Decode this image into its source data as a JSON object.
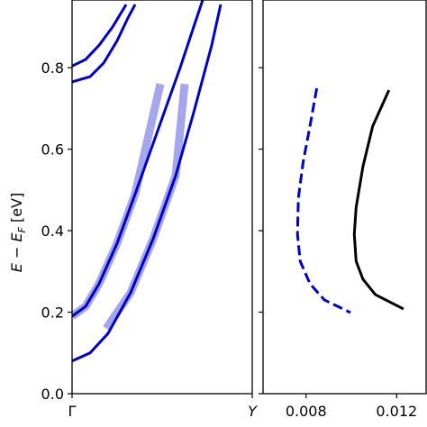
{
  "chart_data": [
    {
      "type": "line",
      "ylabel": "E − E",
      "ylabel_sub": "F",
      "ylabel_suffix": " [eV]",
      "xlim": [
        0,
        1
      ],
      "xticks": [
        {
          "value": 0,
          "label": "Γ"
        },
        {
          "value": 1,
          "label": "Y"
        }
      ],
      "ylim": [
        0,
        0.966
      ],
      "yticks": [
        {
          "value": 0,
          "label": "0.0"
        },
        0.2,
        0.4,
        0.6,
        0.8
      ],
      "series": [
        {
          "color": "rgba(0,0,204,0.35)",
          "width": 9,
          "x": [
            0,
            0.075,
            0.15,
            0.25,
            0.35,
            0.49
          ],
          "values": [
            0.19,
            0.214,
            0.27,
            0.369,
            0.49,
            0.76
          ]
        },
        {
          "color": "rgba(0,0,204,0.35)",
          "width": 9,
          "x": [
            0.19,
            0.325,
            0.45,
            0.575,
            0.625
          ],
          "values": [
            0.16,
            0.248,
            0.38,
            0.535,
            0.76
          ]
        },
        {
          "color": "#0000cc",
          "width": 3,
          "x": [
            0,
            0.075,
            0.15,
            0.25,
            0.35,
            0.475,
            0.6,
            0.675,
            0.725
          ],
          "values": [
            0.19,
            0.214,
            0.27,
            0.369,
            0.49,
            0.645,
            0.8,
            0.9,
            0.966
          ]
        },
        {
          "color": "#0000cc",
          "width": 3,
          "x": [
            0,
            0.1,
            0.2,
            0.325,
            0.45,
            0.575,
            0.675,
            0.775,
            0.825
          ],
          "values": [
            0.08,
            0.1,
            0.148,
            0.248,
            0.38,
            0.535,
            0.69,
            0.855,
            0.955
          ]
        },
        {
          "color": "#0000cc",
          "width": 3,
          "x": [
            0,
            0.075,
            0.15,
            0.225,
            0.3
          ],
          "values": [
            0.804,
            0.82,
            0.855,
            0.9,
            0.955
          ]
        },
        {
          "color": "#0000cc",
          "width": 3,
          "x": [
            0,
            0.1,
            0.175,
            0.25,
            0.31,
            0.35
          ],
          "values": [
            0.765,
            0.778,
            0.811,
            0.866,
            0.922,
            0.955
          ]
        }
      ]
    },
    {
      "type": "line",
      "ytick_labels": false,
      "xlim": [
        0.0061,
        0.0133
      ],
      "xticks": [
        0.008,
        0.012
      ],
      "ylim": [
        0,
        0.966
      ],
      "yticks": [
        0,
        0.2,
        0.4,
        0.6,
        0.8
      ],
      "series": [
        {
          "color": "#0000cc",
          "width": 3,
          "linestyle": "dashed",
          "x": [
            0.00847,
            0.00817,
            0.00787,
            0.00766,
            0.00762,
            0.00774,
            0.00817,
            0.00881,
            0.00996
          ],
          "values": [
            0.749,
            0.656,
            0.568,
            0.48,
            0.391,
            0.325,
            0.27,
            0.23,
            0.199
          ]
        },
        {
          "color": "#000000",
          "width": 3,
          "x": [
            0.01166,
            0.01094,
            0.01051,
            0.01021,
            0.01013,
            0.01021,
            0.01051,
            0.01106,
            0.0123
          ],
          "values": [
            0.745,
            0.656,
            0.557,
            0.457,
            0.391,
            0.325,
            0.281,
            0.243,
            0.208
          ]
        }
      ]
    }
  ]
}
